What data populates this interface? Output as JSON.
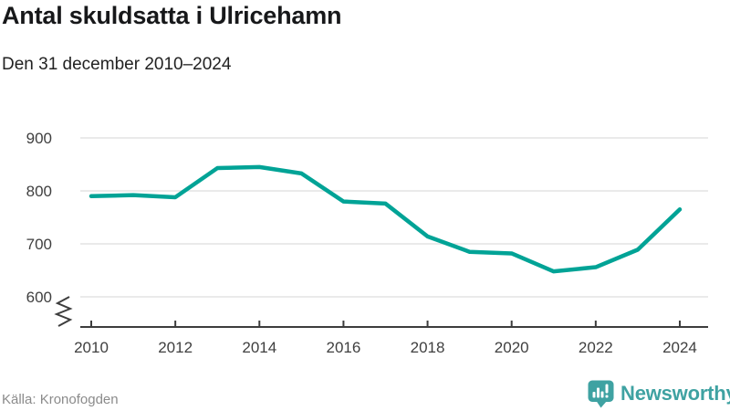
{
  "header": {
    "title": "Antal skuldsatta i Ulricehamn",
    "subtitle": "Den 31 december 2010–2024"
  },
  "chart_data": {
    "type": "line",
    "title": "Antal skuldsatta i Ulricehamn",
    "subtitle": "Den 31 december 2010–2024",
    "x": [
      2010,
      2011,
      2012,
      2013,
      2014,
      2015,
      2016,
      2017,
      2018,
      2019,
      2020,
      2021,
      2022,
      2023,
      2024
    ],
    "series": [
      {
        "name": "Antal skuldsatta",
        "values": [
          790,
          792,
          788,
          843,
          845,
          833,
          780,
          776,
          714,
          685,
          682,
          648,
          656,
          689,
          765
        ]
      }
    ],
    "xlabel": "",
    "ylabel": "",
    "ylim": [
      600,
      900
    ],
    "yticks": [
      600,
      700,
      800,
      900
    ],
    "xticks": [
      2010,
      2012,
      2014,
      2016,
      2018,
      2020,
      2022,
      2024
    ],
    "grid": true,
    "y_axis_break": true,
    "legend": "none",
    "line_color": "#00a396",
    "grid_color": "#e3e3e3",
    "axis_color": "#3d3d3d",
    "tick_label_color": "#3f3f3f"
  },
  "footer": {
    "source": "Källa: Kronofogden",
    "brand": "Newsworthy",
    "brand_color": "#3fa2a2"
  }
}
